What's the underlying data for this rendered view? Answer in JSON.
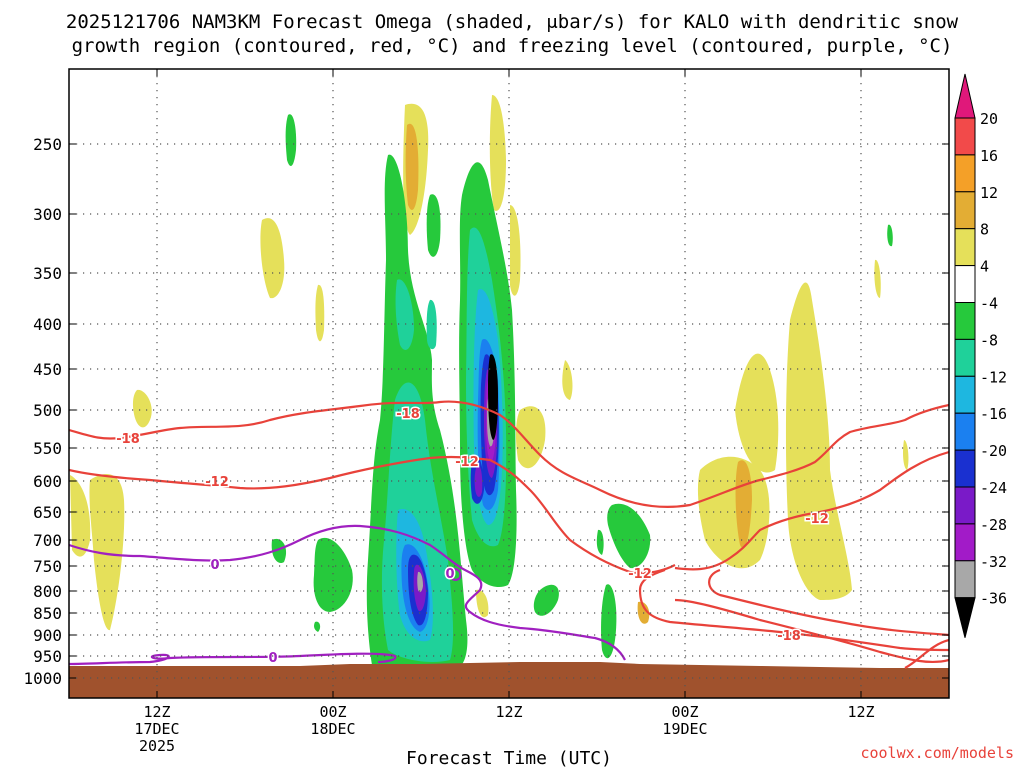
{
  "chart_data": {
    "type": "time-height contour",
    "title_line1": "2025121706 NAM3KM Forecast Omega (shaded, μbar/s) for KALO with dendritic snow",
    "title_line2": "growth region (contoured, red, °C) and freezing level (contoured, purple, °C)",
    "xlabel": "Forecast Time (UTC)",
    "credit": "coolwx.com/models",
    "y_ticks": [
      250,
      300,
      350,
      400,
      450,
      500,
      550,
      600,
      650,
      700,
      750,
      800,
      850,
      900,
      950,
      1000
    ],
    "y_range_hPa": [
      200,
      1000
    ],
    "x_range_hours": [
      6,
      66
    ],
    "x_ticks": [
      {
        "hour": 12,
        "line1": "12Z",
        "line2": "17DEC",
        "line3": "2025"
      },
      {
        "hour": 24,
        "line1": "00Z",
        "line2": "18DEC",
        "line3": ""
      },
      {
        "hour": 36,
        "line1": "12Z",
        "line2": "",
        "line3": ""
      },
      {
        "hour": 48,
        "line1": "00Z",
        "line2": "19DEC",
        "line3": ""
      },
      {
        "hour": 60,
        "line1": "12Z",
        "line2": "",
        "line3": ""
      }
    ],
    "colorbar": {
      "top_label": "20",
      "bins": [
        {
          "label": "16",
          "color": "#f24a4a"
        },
        {
          "label": "12",
          "color": "#f4a028"
        },
        {
          "label": "8",
          "color": "#e3ad34"
        },
        {
          "label": "4",
          "color": "#e5e05a"
        },
        {
          "label": "-4",
          "color": "#ffffff"
        },
        {
          "label": "-8",
          "color": "#26c93c"
        },
        {
          "label": "-12",
          "color": "#1fd19a"
        },
        {
          "label": "-16",
          "color": "#1eb7e0"
        },
        {
          "label": "-20",
          "color": "#1b80f0"
        },
        {
          "label": "-24",
          "color": "#1a30d0"
        },
        {
          "label": "-28",
          "color": "#7a1ac8"
        },
        {
          "label": "-32",
          "color": "#a21bc8"
        },
        {
          "label": "-36",
          "color": "#a8a8a8"
        }
      ],
      "top_color": "#e0187a",
      "bottom_color": "#000000"
    },
    "contour_labels": [
      {
        "text": "-18",
        "series": "red"
      },
      {
        "text": "-18",
        "series": "red"
      },
      {
        "text": "-12",
        "series": "red"
      },
      {
        "text": "-12",
        "series": "red"
      },
      {
        "text": "-12",
        "series": "red"
      },
      {
        "text": "-12",
        "series": "red"
      },
      {
        "text": "-18",
        "series": "red"
      },
      {
        "text": "0",
        "series": "purple"
      },
      {
        "text": "0",
        "series": "purple"
      },
      {
        "text": "0",
        "series": "purple"
      }
    ],
    "series": [
      {
        "name": "-18C isotherm",
        "color": "#e8423a"
      },
      {
        "name": "-12C isotherm",
        "color": "#e8423a"
      },
      {
        "name": "0C freezing level",
        "color": "#a020c0"
      }
    ],
    "terrain_color": "#a0522d",
    "grid": true
  }
}
